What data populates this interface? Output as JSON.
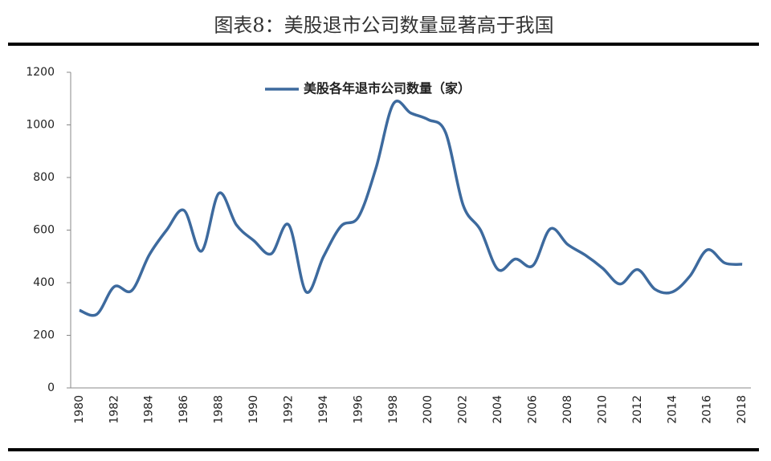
{
  "chart_data": {
    "type": "line",
    "title": "图表8：美股退市公司数量显著高于我国",
    "categories": [
      "1980",
      null,
      "1982",
      null,
      "1984",
      null,
      "1986",
      null,
      "1988",
      null,
      "1990",
      null,
      "1992",
      null,
      "1994",
      null,
      "1996",
      null,
      "1998",
      null,
      "2000",
      null,
      "2002",
      null,
      "2004",
      null,
      "2006",
      null,
      "2008",
      null,
      "2010",
      null,
      "2012",
      null,
      "2014",
      null,
      "2016",
      null,
      "2018"
    ],
    "series": [
      {
        "name": "美股各年退市公司数量（家）",
        "color": "#3d6a9e",
        "values": [
          295,
          280,
          385,
          370,
          505,
          600,
          675,
          520,
          740,
          620,
          560,
          510,
          620,
          365,
          500,
          615,
          650,
          835,
          1080,
          1045,
          1020,
          970,
          695,
          600,
          450,
          490,
          465,
          605,
          545,
          505,
          455,
          395,
          450,
          375,
          365,
          425,
          525,
          475,
          470
        ]
      }
    ],
    "ylim": [
      0,
      1200
    ],
    "yticks": [
      0,
      200,
      400,
      600,
      800,
      1000,
      1200
    ],
    "grid": false,
    "legend": "top"
  }
}
